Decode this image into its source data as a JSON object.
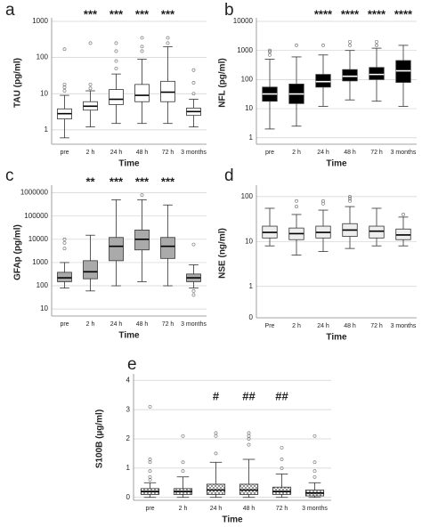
{
  "chart_data": [
    {
      "type": "box",
      "panel": "a",
      "ylabel": "TAU (pg/ml)",
      "xlabel": "Time",
      "log": true,
      "grid": true,
      "categories": [
        "pre",
        "2 h",
        "24 h",
        "48 h",
        "72 h",
        "3 months"
      ],
      "annotations": [
        null,
        "***",
        "***",
        "***",
        "***",
        null
      ],
      "color": "#ffffff",
      "median_color": "#000000",
      "ylim": [
        0.4,
        1000
      ],
      "yticks": [
        1,
        10,
        100,
        1000
      ],
      "boxes": [
        {
          "min": 0.6,
          "q1": 2,
          "median": 2.8,
          "q3": 3.8,
          "max": 9,
          "outliers": [
            12,
            15,
            18,
            170
          ]
        },
        {
          "min": 1.2,
          "q1": 3.5,
          "median": 4.5,
          "q3": 6,
          "max": 12,
          "outliers": [
            14,
            18,
            250
          ]
        },
        {
          "min": 1.5,
          "q1": 5,
          "median": 7,
          "q3": 13,
          "max": 35,
          "outliers": [
            50,
            80,
            150,
            250
          ]
        },
        {
          "min": 1.5,
          "q1": 6,
          "median": 9,
          "q3": 18,
          "max": 90,
          "outliers": [
            150,
            200,
            350
          ]
        },
        {
          "min": 1.5,
          "q1": 6,
          "median": 11,
          "q3": 22,
          "max": 200,
          "outliers": [
            250,
            350
          ]
        },
        {
          "min": 1.2,
          "q1": 2.5,
          "median": 3.2,
          "q3": 4,
          "max": 7,
          "outliers": [
            10,
            20,
            45
          ]
        }
      ]
    },
    {
      "type": "box",
      "panel": "b",
      "ylabel": "NFL (pg/ml)",
      "xlabel": "Time",
      "log": true,
      "grid": true,
      "categories": [
        "pre",
        "2 h",
        "24 h",
        "48 h",
        "72 h",
        "3 months"
      ],
      "annotations": [
        null,
        null,
        "****",
        "****",
        "****",
        "****"
      ],
      "color": "#000000",
      "median_color": "#ffffff",
      "ylim": [
        0.6,
        10000
      ],
      "yticks": [
        1,
        10,
        100,
        1000,
        10000
      ],
      "boxes": [
        {
          "min": 2,
          "q1": 18,
          "median": 32,
          "q3": 55,
          "max": 500,
          "outliers": [
            700,
            900,
            1000
          ]
        },
        {
          "min": 2.5,
          "q1": 15,
          "median": 32,
          "q3": 70,
          "max": 600,
          "outliers": [
            1500
          ]
        },
        {
          "min": 12,
          "q1": 55,
          "median": 85,
          "q3": 150,
          "max": 700,
          "outliers": [
            1500
          ]
        },
        {
          "min": 20,
          "q1": 90,
          "median": 130,
          "q3": 220,
          "max": 1000,
          "outliers": [
            1500,
            2000
          ]
        },
        {
          "min": 18,
          "q1": 100,
          "median": 150,
          "q3": 260,
          "max": 1200,
          "outliers": [
            1500,
            2000
          ]
        },
        {
          "min": 12,
          "q1": 80,
          "median": 200,
          "q3": 450,
          "max": 1500,
          "outliers": []
        }
      ]
    },
    {
      "type": "box",
      "panel": "c",
      "ylabel": "GFAp (pg/ml)",
      "xlabel": "Time",
      "log": true,
      "grid": true,
      "categories": [
        "pre",
        "2 h",
        "24 h",
        "48 h",
        "72 h",
        "3 months"
      ],
      "annotations": [
        null,
        "**",
        "***",
        "***",
        "***",
        null
      ],
      "color": "#aaaaaa",
      "median_color": "#000000",
      "ylim": [
        5,
        1500000
      ],
      "yticks": [
        10,
        100,
        1000,
        10000,
        100000,
        1000000
      ],
      "boxes": [
        {
          "min": 80,
          "q1": 150,
          "median": 220,
          "q3": 380,
          "max": 1000,
          "outliers": [
            4000,
            7000,
            10000
          ]
        },
        {
          "min": 60,
          "q1": 200,
          "median": 400,
          "q3": 1200,
          "max": 15000,
          "outliers": []
        },
        {
          "min": 100,
          "q1": 1200,
          "median": 5000,
          "q3": 12000,
          "max": 500000,
          "outliers": []
        },
        {
          "min": 150,
          "q1": 3500,
          "median": 10000,
          "q3": 25000,
          "max": 500000,
          "outliers": [
            800000
          ]
        },
        {
          "min": 100,
          "q1": 1500,
          "median": 5000,
          "q3": 12000,
          "max": 300000,
          "outliers": []
        },
        {
          "min": 80,
          "q1": 150,
          "median": 220,
          "q3": 320,
          "max": 800,
          "outliers": [
            60,
            40,
            6000
          ]
        }
      ]
    },
    {
      "type": "box",
      "panel": "d",
      "ylabel": "NSE (ng/ml)",
      "xlabel": "Time",
      "log": true,
      "grid": true,
      "categories": [
        "Pre",
        "2 h",
        "24 h",
        "48 h",
        "72 h",
        "3 months"
      ],
      "annotations": [
        null,
        null,
        null,
        null,
        null,
        null
      ],
      "axis_floor_label": "0",
      "color": "#eeeeee",
      "median_color": "#000000",
      "ylim": [
        0.2,
        150
      ],
      "yticks": [
        1,
        10,
        100
      ],
      "boxes": [
        {
          "min": 8,
          "q1": 12,
          "median": 16,
          "q3": 22,
          "max": 55,
          "outliers": []
        },
        {
          "min": 5,
          "q1": 11,
          "median": 15,
          "q3": 20,
          "max": 40,
          "outliers": [
            60,
            80
          ]
        },
        {
          "min": 6,
          "q1": 12,
          "median": 16,
          "q3": 22,
          "max": 50,
          "outliers": [
            70,
            80
          ]
        },
        {
          "min": 7,
          "q1": 13,
          "median": 18,
          "q3": 25,
          "max": 60,
          "outliers": [
            80,
            90,
            100
          ]
        },
        {
          "min": 8,
          "q1": 12,
          "median": 17,
          "q3": 22,
          "max": 55,
          "outliers": []
        },
        {
          "min": 8,
          "q1": 11,
          "median": 14,
          "q3": 19,
          "max": 35,
          "outliers": [
            40
          ]
        }
      ]
    },
    {
      "type": "box",
      "panel": "e",
      "ylabel": "S100B (µg/ml)",
      "xlabel": "Time",
      "log": false,
      "grid": true,
      "categories": [
        "pre",
        "2 h",
        "24 h",
        "48 h",
        "72 h",
        "3 months"
      ],
      "annotations": [
        null,
        null,
        "#",
        "##",
        "##",
        null
      ],
      "color": "#dddddd",
      "pattern": "crosshatch",
      "median_color": "#000000",
      "ylim": [
        -0.1,
        4.1
      ],
      "yticks": [
        0,
        1,
        2,
        3,
        4
      ],
      "boxes": [
        {
          "min": 0,
          "q1": 0.1,
          "median": 0.2,
          "q3": 0.3,
          "max": 0.5,
          "outliers": [
            0.6,
            0.7,
            0.9,
            1.2,
            1.3,
            3.1
          ]
        },
        {
          "min": 0,
          "q1": 0.1,
          "median": 0.2,
          "q3": 0.3,
          "max": 0.7,
          "outliers": [
            0.9,
            1.2,
            2.1
          ]
        },
        {
          "min": 0,
          "q1": 0.1,
          "median": 0.25,
          "q3": 0.45,
          "max": 1.2,
          "outliers": [
            1.5,
            2.1,
            2.2
          ]
        },
        {
          "min": 0,
          "q1": 0.1,
          "median": 0.25,
          "q3": 0.45,
          "max": 1.3,
          "outliers": [
            1.8,
            2.0,
            2.1,
            2.2
          ]
        },
        {
          "min": 0,
          "q1": 0.1,
          "median": 0.2,
          "q3": 0.35,
          "max": 0.8,
          "outliers": [
            1.0,
            1.3,
            1.7
          ]
        },
        {
          "min": 0,
          "q1": 0.05,
          "median": 0.15,
          "q3": 0.25,
          "max": 0.5,
          "outliers": [
            0.7,
            0.9,
            1.2,
            2.1
          ]
        }
      ]
    }
  ]
}
